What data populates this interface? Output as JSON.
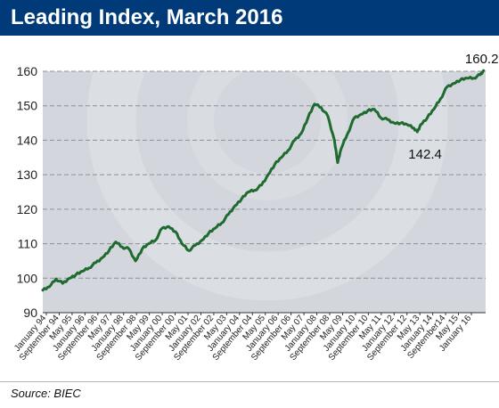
{
  "title": "Leading Index, March 2016",
  "source": "Source: BIEC",
  "colors": {
    "header_bg": "#003a78",
    "plot_bg": "#d3d7dd",
    "line": "#1e6a2f",
    "gridline": "#8a9099"
  },
  "chart_data": {
    "type": "line",
    "title": "Leading Index, March 2016",
    "xlabel": "",
    "ylabel": "",
    "ylim": [
      90,
      160
    ],
    "y_ticks": [
      90,
      100,
      110,
      120,
      130,
      140,
      150,
      160
    ],
    "grid": "horizontal dashed",
    "x_tick_labels": [
      "January 94",
      "September 94",
      "May 95",
      "January 96",
      "September 96",
      "May 97",
      "January 98",
      "September 98",
      "May 99",
      "January 00",
      "September 00",
      "May 01",
      "January 02",
      "September 02",
      "May 03",
      "January 04",
      "September 04",
      "May 05",
      "January 06",
      "September 06",
      "May 07",
      "January 08",
      "September 08",
      "May 09",
      "January 10",
      "September 10",
      "May 11",
      "January 12",
      "September 12",
      "May 13",
      "January 14",
      "September14",
      "May 15",
      "January 16"
    ],
    "series": [
      {
        "x": [
          "1994-01",
          "1994-05",
          "1994-09",
          "1995-01",
          "1995-05",
          "1995-09",
          "1996-01",
          "1996-05",
          "1996-09",
          "1997-01",
          "1997-05",
          "1997-09",
          "1998-01",
          "1998-05",
          "1998-09",
          "1999-01",
          "1999-05",
          "1999-09",
          "2000-01",
          "2000-05",
          "2000-09",
          "2001-01",
          "2001-05",
          "2001-09",
          "2002-01",
          "2002-05",
          "2002-09",
          "2003-01",
          "2003-05",
          "2003-09",
          "2004-01",
          "2004-05",
          "2004-09",
          "2005-01",
          "2005-05",
          "2005-09",
          "2006-01",
          "2006-05",
          "2006-09",
          "2007-01",
          "2007-05",
          "2007-09",
          "2008-01",
          "2008-05",
          "2008-09",
          "2008-11",
          "2009-01",
          "2009-05",
          "2009-09",
          "2010-01",
          "2010-05",
          "2010-09",
          "2011-01",
          "2011-05",
          "2011-09",
          "2012-01",
          "2012-05",
          "2012-09",
          "2012-11",
          "2013-01",
          "2013-05",
          "2013-09",
          "2014-01",
          "2014-05",
          "2014-09",
          "2015-01",
          "2015-05",
          "2015-09",
          "2016-01",
          "2016-03"
        ],
        "values": [
          96.5,
          97.5,
          99.8,
          98.5,
          100.0,
          101.0,
          102.0,
          103.0,
          104.5,
          106.0,
          108.0,
          110.5,
          109.0,
          108.5,
          105.0,
          108.5,
          110.0,
          111.0,
          114.5,
          115.0,
          113.5,
          110.0,
          108.0,
          109.5,
          111.0,
          113.0,
          114.5,
          116.0,
          118.5,
          121.0,
          123.0,
          125.0,
          125.5,
          127.0,
          130.0,
          133.0,
          135.0,
          137.0,
          140.0,
          142.0,
          146.5,
          150.5,
          149.5,
          147.0,
          140.0,
          133.5,
          137.5,
          142.0,
          146.5,
          147.5,
          148.5,
          149.0,
          146.5,
          146.0,
          145.0,
          145.0,
          144.5,
          143.5,
          142.4,
          144.5,
          146.5,
          149.0,
          152.0,
          155.5,
          156.5,
          157.5,
          158.0,
          158.0,
          159.0,
          160.2
        ]
      }
    ],
    "annotations": [
      {
        "label": "160.2",
        "x": "2016-03",
        "y": 160.2
      },
      {
        "label": "142.4",
        "x": "2012-11",
        "y": 142.4
      }
    ]
  }
}
